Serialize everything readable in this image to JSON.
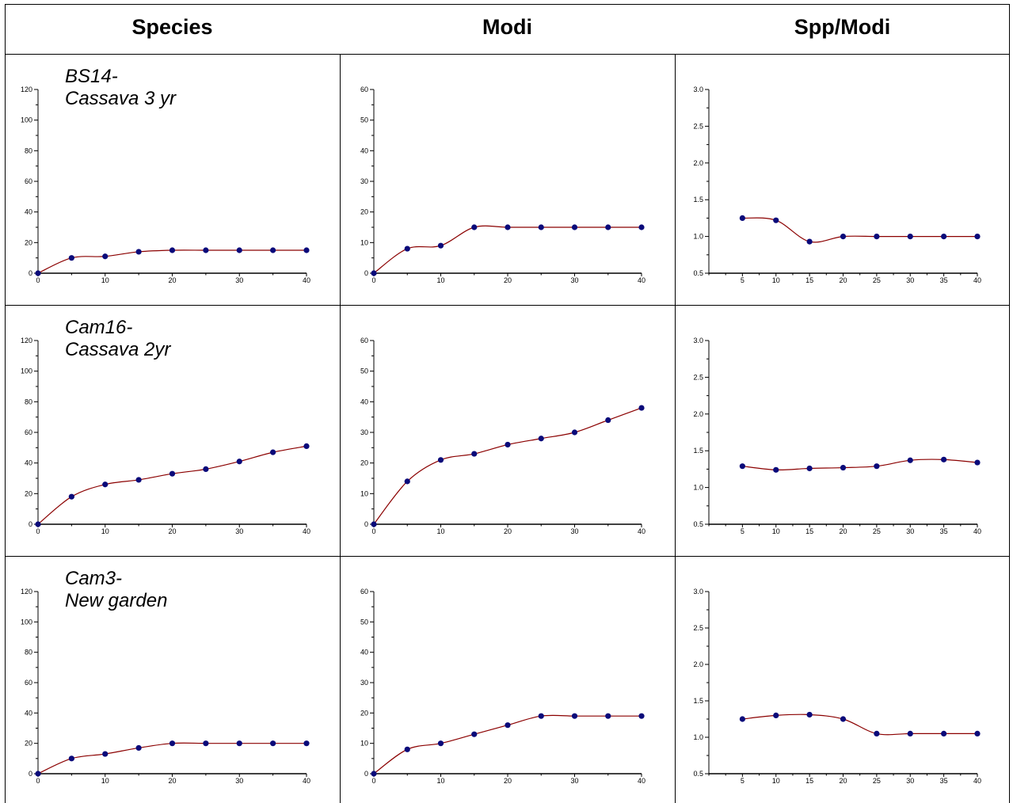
{
  "headers": [
    "Species",
    "Modi",
    "Spp/Modi"
  ],
  "rows": [
    {
      "label_line1": "BS14-",
      "label_line2": "Cassava 3 yr"
    },
    {
      "label_line1": "Cam16-",
      "label_line2": "Cassava 2yr"
    },
    {
      "label_line1": "Cam3-",
      "label_line2": "New garden"
    }
  ],
  "colors": {
    "line": "#8b0000",
    "marker": "#0a0a7a",
    "axis": "#000000",
    "border": "#000000"
  },
  "chart_data": [
    {
      "type": "line",
      "row": 0,
      "col": 0,
      "x": [
        0,
        5,
        10,
        15,
        20,
        25,
        30,
        35,
        40
      ],
      "y": [
        0,
        10,
        11,
        14,
        15,
        15,
        15,
        15,
        15
      ],
      "xlim": [
        0,
        40
      ],
      "ylim": [
        0,
        120
      ],
      "xticks": [
        "0",
        "10",
        "20",
        "30",
        "40"
      ],
      "yticks": [
        "0",
        "20",
        "40",
        "60",
        "80",
        "100",
        "120"
      ]
    },
    {
      "type": "line",
      "row": 0,
      "col": 1,
      "x": [
        0,
        5,
        10,
        15,
        20,
        25,
        30,
        35,
        40
      ],
      "y": [
        0,
        8,
        9,
        15,
        15,
        15,
        15,
        15,
        15
      ],
      "xlim": [
        0,
        40
      ],
      "ylim": [
        0,
        60
      ],
      "xticks": [
        "0",
        "10",
        "20",
        "30",
        "40"
      ],
      "yticks": [
        "0",
        "10",
        "20",
        "30",
        "40",
        "50",
        "60"
      ]
    },
    {
      "type": "line",
      "row": 0,
      "col": 2,
      "x": [
        5,
        10,
        15,
        20,
        25,
        30,
        35,
        40
      ],
      "y": [
        1.25,
        1.22,
        0.93,
        1.0,
        1.0,
        1.0,
        1.0,
        1.0
      ],
      "xlim": [
        0,
        40
      ],
      "ylim": [
        0.5,
        3.0
      ],
      "xticks": [
        "5",
        "10",
        "15",
        "20",
        "25",
        "30",
        "35",
        "40"
      ],
      "yticks": [
        "0.5",
        "1.0",
        "1.5",
        "2.0",
        "2.5",
        "3.0"
      ]
    },
    {
      "type": "line",
      "row": 1,
      "col": 0,
      "x": [
        0,
        5,
        10,
        15,
        20,
        25,
        30,
        35,
        40
      ],
      "y": [
        0,
        18,
        26,
        29,
        33,
        36,
        41,
        47,
        51
      ],
      "xlim": [
        0,
        40
      ],
      "ylim": [
        0,
        120
      ],
      "xticks": [
        "0",
        "10",
        "20",
        "30",
        "40"
      ],
      "yticks": [
        "0",
        "20",
        "40",
        "60",
        "80",
        "100",
        "120"
      ]
    },
    {
      "type": "line",
      "row": 1,
      "col": 1,
      "x": [
        0,
        5,
        10,
        15,
        20,
        25,
        30,
        35,
        40
      ],
      "y": [
        0,
        14,
        21,
        23,
        26,
        28,
        30,
        34,
        38
      ],
      "xlim": [
        0,
        40
      ],
      "ylim": [
        0,
        60
      ],
      "xticks": [
        "0",
        "10",
        "20",
        "30",
        "40"
      ],
      "yticks": [
        "0",
        "10",
        "20",
        "30",
        "40",
        "50",
        "60"
      ]
    },
    {
      "type": "line",
      "row": 1,
      "col": 2,
      "x": [
        5,
        10,
        15,
        20,
        25,
        30,
        35,
        40
      ],
      "y": [
        1.29,
        1.24,
        1.26,
        1.27,
        1.29,
        1.37,
        1.38,
        1.34
      ],
      "xlim": [
        0,
        40
      ],
      "ylim": [
        0.5,
        3.0
      ],
      "xticks": [
        "5",
        "10",
        "15",
        "20",
        "25",
        "30",
        "35",
        "40"
      ],
      "yticks": [
        "0.5",
        "1.0",
        "1.5",
        "2.0",
        "2.5",
        "3.0"
      ]
    },
    {
      "type": "line",
      "row": 2,
      "col": 0,
      "x": [
        0,
        5,
        10,
        15,
        20,
        25,
        30,
        35,
        40
      ],
      "y": [
        0,
        10,
        13,
        17,
        20,
        20,
        20,
        20,
        20
      ],
      "xlim": [
        0,
        40
      ],
      "ylim": [
        0,
        120
      ],
      "xticks": [
        "0",
        "10",
        "20",
        "30",
        "40"
      ],
      "yticks": [
        "0",
        "20",
        "40",
        "60",
        "80",
        "100",
        "120"
      ]
    },
    {
      "type": "line",
      "row": 2,
      "col": 1,
      "x": [
        0,
        5,
        10,
        15,
        20,
        25,
        30,
        35,
        40
      ],
      "y": [
        0,
        8,
        10,
        13,
        16,
        19,
        19,
        19,
        19
      ],
      "xlim": [
        0,
        40
      ],
      "ylim": [
        0,
        60
      ],
      "xticks": [
        "0",
        "10",
        "20",
        "30",
        "40"
      ],
      "yticks": [
        "0",
        "10",
        "20",
        "30",
        "40",
        "50",
        "60"
      ]
    },
    {
      "type": "line",
      "row": 2,
      "col": 2,
      "x": [
        5,
        10,
        15,
        20,
        25,
        30,
        35,
        40
      ],
      "y": [
        1.25,
        1.3,
        1.31,
        1.25,
        1.05,
        1.05,
        1.05,
        1.05
      ],
      "xlim": [
        0,
        40
      ],
      "ylim": [
        0.5,
        3.0
      ],
      "xticks": [
        "5",
        "10",
        "15",
        "20",
        "25",
        "30",
        "35",
        "40"
      ],
      "yticks": [
        "0.5",
        "1.0",
        "1.5",
        "2.0",
        "2.5",
        "3.0"
      ]
    }
  ]
}
